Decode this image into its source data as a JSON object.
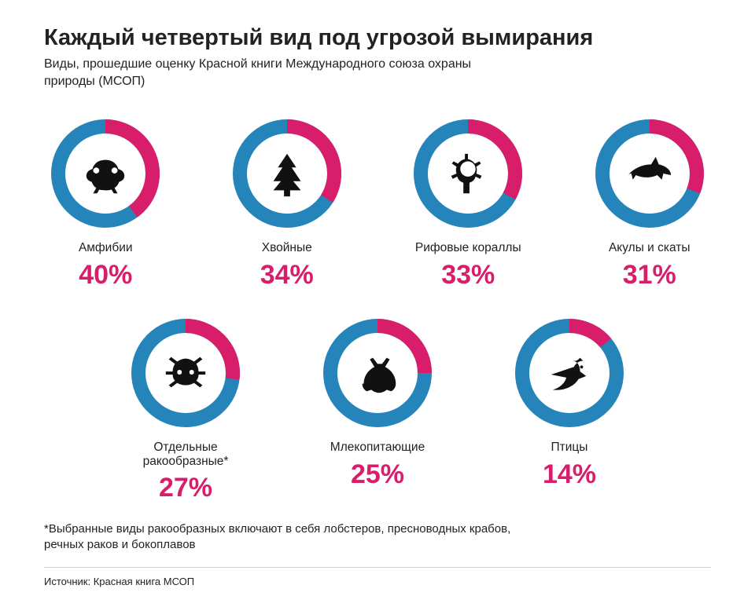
{
  "title": "Каждый четвертый вид под угрозой вымирания",
  "subtitle": "Виды, прошедшие оценку Красной книги Международного союза охраны природы (МСОП)",
  "footnote": "*Выбранные виды ракообразных включают в себя лобстеров, пресноводных крабов, речных раков и бокоплавов",
  "source": "Источник: Красная книга МСОП",
  "style": {
    "primary_color": "#2585bb",
    "accent_color": "#d81e6b",
    "ring_stroke_width": 18,
    "ring_radius": 60,
    "icon_fill": "#111111",
    "title_fontsize": 29,
    "subtitle_fontsize": 16,
    "label_fontsize": 15.5,
    "pct_fontsize": 34,
    "background": "#ffffff"
  },
  "rows": [
    [
      {
        "id": "amphibians",
        "label": "Амфибии",
        "pct": 40,
        "icon": "frog"
      },
      {
        "id": "conifers",
        "label": "Хвойные",
        "pct": 34,
        "icon": "tree"
      },
      {
        "id": "reef-corals",
        "label": "Рифовые кораллы",
        "pct": 33,
        "icon": "coral"
      },
      {
        "id": "sharks-rays",
        "label": "Акулы и скаты",
        "pct": 31,
        "icon": "shark"
      }
    ],
    [
      {
        "id": "crustaceans",
        "label": "Отдельные ракообразные*",
        "pct": 27,
        "icon": "crab"
      },
      {
        "id": "mammals",
        "label": "Млекопитающие",
        "pct": 25,
        "icon": "bear"
      },
      {
        "id": "birds",
        "label": "Птицы",
        "pct": 14,
        "icon": "bird"
      }
    ]
  ]
}
